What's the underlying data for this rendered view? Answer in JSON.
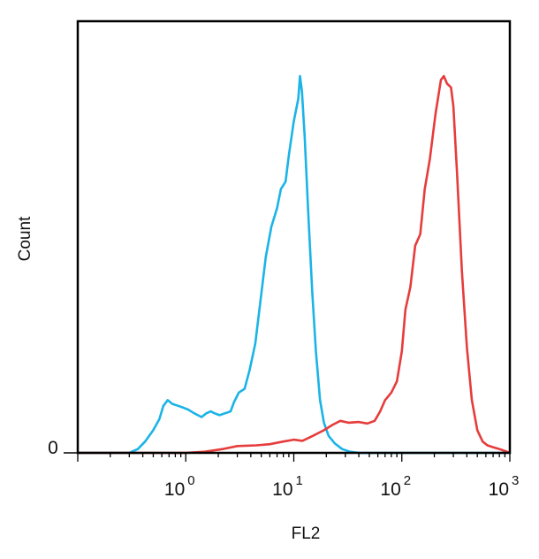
{
  "chart_data": {
    "type": "line",
    "xlabel": "FL2",
    "ylabel": "Count",
    "x_scale": "log",
    "xlim": [
      0.1,
      1000
    ],
    "ylim": [
      0,
      100
    ],
    "y_tick_labels": [
      "0"
    ],
    "x_ticks": [
      {
        "value": 1,
        "base": "10",
        "exp": "0"
      },
      {
        "value": 10,
        "base": "10",
        "exp": "1"
      },
      {
        "value": 100,
        "base": "10",
        "exp": "2"
      },
      {
        "value": 1000,
        "base": "10",
        "exp": "3"
      }
    ],
    "grid": false,
    "legend": "none",
    "series": [
      {
        "color": "#1ab4e6",
        "points": [
          [
            0.1,
            0
          ],
          [
            0.3,
            0
          ],
          [
            0.36,
            1
          ],
          [
            0.42,
            3
          ],
          [
            0.5,
            6
          ],
          [
            0.57,
            9
          ],
          [
            0.62,
            12.5
          ],
          [
            0.68,
            14
          ],
          [
            0.75,
            13
          ],
          [
            0.85,
            12.5
          ],
          [
            0.95,
            12
          ],
          [
            1.05,
            11.5
          ],
          [
            1.2,
            10.5
          ],
          [
            1.4,
            9.5
          ],
          [
            1.55,
            10.5
          ],
          [
            1.7,
            11
          ],
          [
            1.85,
            10.5
          ],
          [
            2.05,
            10
          ],
          [
            2.3,
            10.5
          ],
          [
            2.6,
            11
          ],
          [
            2.8,
            13.5
          ],
          [
            3.1,
            16
          ],
          [
            3.5,
            17
          ],
          [
            3.9,
            22
          ],
          [
            4.4,
            29
          ],
          [
            4.9,
            40
          ],
          [
            5.5,
            52
          ],
          [
            6.2,
            60
          ],
          [
            7.0,
            65
          ],
          [
            7.6,
            70
          ],
          [
            8.4,
            72
          ],
          [
            9.0,
            79
          ],
          [
            10.0,
            88
          ],
          [
            11.0,
            94
          ],
          [
            11.4,
            100
          ],
          [
            11.9,
            96
          ],
          [
            12.6,
            84
          ],
          [
            13.6,
            64
          ],
          [
            14.8,
            43
          ],
          [
            16.0,
            27
          ],
          [
            17.5,
            14
          ],
          [
            19.0,
            8
          ],
          [
            21.0,
            4.5
          ],
          [
            24.0,
            2.5
          ],
          [
            28.0,
            1
          ],
          [
            33.0,
            0.3
          ],
          [
            40.0,
            0
          ],
          [
            1000,
            0
          ]
        ]
      },
      {
        "color": "#e63c3c",
        "points": [
          [
            0.1,
            0
          ],
          [
            1.0,
            0
          ],
          [
            1.5,
            0.3
          ],
          [
            2.2,
            1
          ],
          [
            3.0,
            1.8
          ],
          [
            4.5,
            2
          ],
          [
            6.0,
            2.3
          ],
          [
            8.0,
            3
          ],
          [
            10.0,
            3.5
          ],
          [
            12.0,
            3.2
          ],
          [
            15.0,
            4.5
          ],
          [
            19.0,
            6
          ],
          [
            23.0,
            7.5
          ],
          [
            27.0,
            8.5
          ],
          [
            32.0,
            8
          ],
          [
            40.0,
            8.2
          ],
          [
            48.0,
            7.8
          ],
          [
            56.0,
            8.5
          ],
          [
            63.0,
            11
          ],
          [
            70.0,
            14
          ],
          [
            80.0,
            16
          ],
          [
            90.0,
            19
          ],
          [
            100.0,
            27
          ],
          [
            108.0,
            38
          ],
          [
            120.0,
            44
          ],
          [
            133.0,
            55
          ],
          [
            148.0,
            58
          ],
          [
            163.0,
            70
          ],
          [
            182.0,
            78
          ],
          [
            205.0,
            90
          ],
          [
            230.0,
            99
          ],
          [
            245.0,
            100
          ],
          [
            262.0,
            98
          ],
          [
            285.0,
            97
          ],
          [
            300.0,
            92
          ],
          [
            325.0,
            74
          ],
          [
            360.0,
            48
          ],
          [
            400.0,
            28
          ],
          [
            445.0,
            14
          ],
          [
            500.0,
            6
          ],
          [
            560.0,
            3
          ],
          [
            620.0,
            2
          ],
          [
            700.0,
            1.5
          ],
          [
            800.0,
            1
          ],
          [
            900.0,
            0.5
          ],
          [
            1000,
            0
          ]
        ]
      }
    ]
  }
}
